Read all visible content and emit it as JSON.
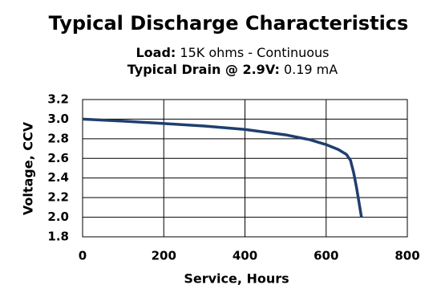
{
  "chart_data": {
    "type": "line",
    "title": "Typical Discharge Characteristics",
    "subtitle": [
      {
        "label": "Load:",
        "text": "15K ohms - Continuous"
      },
      {
        "label": "Typical Drain @ 2.9V:",
        "text": "0.19 mA"
      }
    ],
    "xlabel": "Service, Hours",
    "ylabel": "Voltage, CCV",
    "x": [
      0,
      100,
      200,
      300,
      400,
      500,
      560,
      600,
      630,
      650,
      660,
      668,
      675,
      681,
      687
    ],
    "series": [
      {
        "name": "Voltage",
        "color": "#1f3f6e",
        "values": [
          3.0,
          2.98,
          2.955,
          2.93,
          2.895,
          2.84,
          2.79,
          2.74,
          2.69,
          2.64,
          2.58,
          2.45,
          2.3,
          2.15,
          2.0
        ]
      }
    ],
    "xlim": [
      0,
      800
    ],
    "xticks": [
      0,
      200,
      400,
      600,
      800
    ],
    "ylim": [
      1.8,
      3.2
    ],
    "yticks": [
      1.8,
      {
        "value": 2,
        "label": "2.0"
      },
      2.2,
      2.4,
      2.6,
      2.8,
      {
        "value": 3,
        "label": "3.0"
      },
      3.2
    ],
    "grid": true
  }
}
